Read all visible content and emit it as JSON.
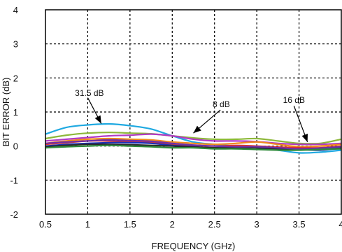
{
  "chart_data": {
    "type": "line",
    "title": "",
    "xlabel": "FREQUENCY (GHz)",
    "ylabel": "BIT ERROR (dB)",
    "xlim": [
      0.5,
      4
    ],
    "ylim": [
      -2,
      4
    ],
    "x_ticks": [
      0.5,
      1,
      1.5,
      2,
      2.5,
      3,
      3.5,
      4
    ],
    "x_tick_labels": [
      "0.5",
      "1",
      "1.5",
      "2",
      "2.5",
      "3",
      "3.5",
      "4"
    ],
    "y_ticks": [
      -2,
      -1,
      0,
      1,
      2,
      3,
      4
    ],
    "y_tick_labels": [
      "-2",
      "-1",
      "0",
      "1",
      "2",
      "3",
      "4"
    ],
    "grid": "dashed",
    "series": [
      {
        "color": "#1fa9e1",
        "x": [
          0.5,
          0.75,
          1,
          1.25,
          1.5,
          1.75,
          2,
          2.25,
          2.5,
          2.75,
          3,
          3.25,
          3.5,
          3.75,
          4
        ],
        "y": [
          0.35,
          0.55,
          0.62,
          0.65,
          0.6,
          0.5,
          0.3,
          0.12,
          0.05,
          0.0,
          -0.05,
          -0.12,
          -0.2,
          -0.18,
          -0.12
        ]
      },
      {
        "color": "#8db83a",
        "x": [
          0.5,
          0.75,
          1,
          1.25,
          1.5,
          1.75,
          2,
          2.25,
          2.5,
          2.75,
          3,
          3.25,
          3.5,
          3.75,
          4
        ],
        "y": [
          0.22,
          0.32,
          0.38,
          0.4,
          0.38,
          0.36,
          0.3,
          0.24,
          0.2,
          0.2,
          0.22,
          0.15,
          0.08,
          0.08,
          0.2
        ]
      },
      {
        "color": "#b23ac4",
        "x": [
          0.5,
          0.75,
          1,
          1.25,
          1.5,
          1.75,
          2,
          2.25,
          2.5,
          2.75,
          3,
          3.25,
          3.5,
          3.75,
          4
        ],
        "y": [
          0.15,
          0.2,
          0.25,
          0.3,
          0.32,
          0.35,
          0.3,
          0.2,
          0.15,
          0.15,
          0.13,
          0.08,
          0.05,
          0.05,
          0.08
        ]
      },
      {
        "color": "#f08a1c",
        "x": [
          0.5,
          0.75,
          1,
          1.25,
          1.5,
          1.75,
          2,
          2.25,
          2.5,
          2.75,
          3,
          3.25,
          3.5,
          3.75,
          4
        ],
        "y": [
          0.08,
          0.15,
          0.2,
          0.22,
          0.2,
          0.18,
          0.12,
          0.08,
          0.05,
          0.08,
          0.12,
          0.05,
          -0.02,
          0.0,
          0.05
        ]
      },
      {
        "color": "#e0342c",
        "x": [
          0.5,
          0.75,
          1,
          1.25,
          1.5,
          1.75,
          2,
          2.25,
          2.5,
          2.75,
          3,
          3.25,
          3.5,
          3.75,
          4
        ],
        "y": [
          0.05,
          0.1,
          0.15,
          0.15,
          0.12,
          0.1,
          0.05,
          0.02,
          0.0,
          0.02,
          0.0,
          -0.03,
          -0.05,
          -0.05,
          0.0
        ]
      },
      {
        "color": "#1a2fb8",
        "x": [
          0.5,
          0.75,
          1,
          1.25,
          1.5,
          1.75,
          2,
          2.25,
          2.5,
          2.75,
          3,
          3.25,
          3.5,
          3.75,
          4
        ],
        "y": [
          0.0,
          0.05,
          0.08,
          0.1,
          0.1,
          0.08,
          0.02,
          -0.02,
          -0.05,
          -0.05,
          -0.05,
          -0.1,
          -0.1,
          -0.12,
          -0.05
        ]
      },
      {
        "color": "#2b2b2b",
        "x": [
          0.5,
          0.75,
          1,
          1.25,
          1.5,
          1.75,
          2,
          2.25,
          2.5,
          2.75,
          3,
          3.25,
          3.5,
          3.75,
          4
        ],
        "y": [
          -0.02,
          0.02,
          0.05,
          0.05,
          0.04,
          0.02,
          0.0,
          -0.03,
          -0.05,
          -0.05,
          -0.05,
          -0.08,
          -0.1,
          -0.1,
          -0.05
        ]
      },
      {
        "color": "#6d2fa8",
        "x": [
          0.5,
          0.75,
          1,
          1.25,
          1.5,
          1.75,
          2,
          2.25,
          2.5,
          2.75,
          3,
          3.25,
          3.5,
          3.75,
          4
        ],
        "y": [
          0.08,
          0.12,
          0.15,
          0.18,
          0.16,
          0.14,
          0.08,
          0.03,
          0.0,
          -0.02,
          -0.02,
          -0.05,
          -0.08,
          -0.06,
          -0.02
        ]
      },
      {
        "color": "#2f8a3a",
        "x": [
          0.5,
          0.75,
          1,
          1.25,
          1.5,
          1.75,
          2,
          2.25,
          2.5,
          2.75,
          3,
          3.25,
          3.5,
          3.75,
          4
        ],
        "y": [
          -0.05,
          -0.02,
          0.0,
          0.02,
          0.0,
          -0.02,
          -0.05,
          -0.05,
          -0.08,
          -0.08,
          -0.1,
          -0.12,
          -0.12,
          -0.1,
          -0.08
        ]
      }
    ],
    "annotations": [
      {
        "text": "31.5 dB",
        "text_x": 1.02,
        "text_y": 1.47,
        "arrow_from": [
          1.0,
          1.42
        ],
        "arrow_to": [
          1.16,
          0.66
        ]
      },
      {
        "text": "8 dB",
        "text_x": 2.58,
        "text_y": 1.14,
        "arrow_from": [
          2.57,
          1.06
        ],
        "arrow_to": [
          2.25,
          0.38
        ]
      },
      {
        "text": "16 dB",
        "text_x": 3.44,
        "text_y": 1.27,
        "arrow_from": [
          3.44,
          1.18
        ],
        "arrow_to": [
          3.6,
          0.12
        ]
      }
    ]
  }
}
